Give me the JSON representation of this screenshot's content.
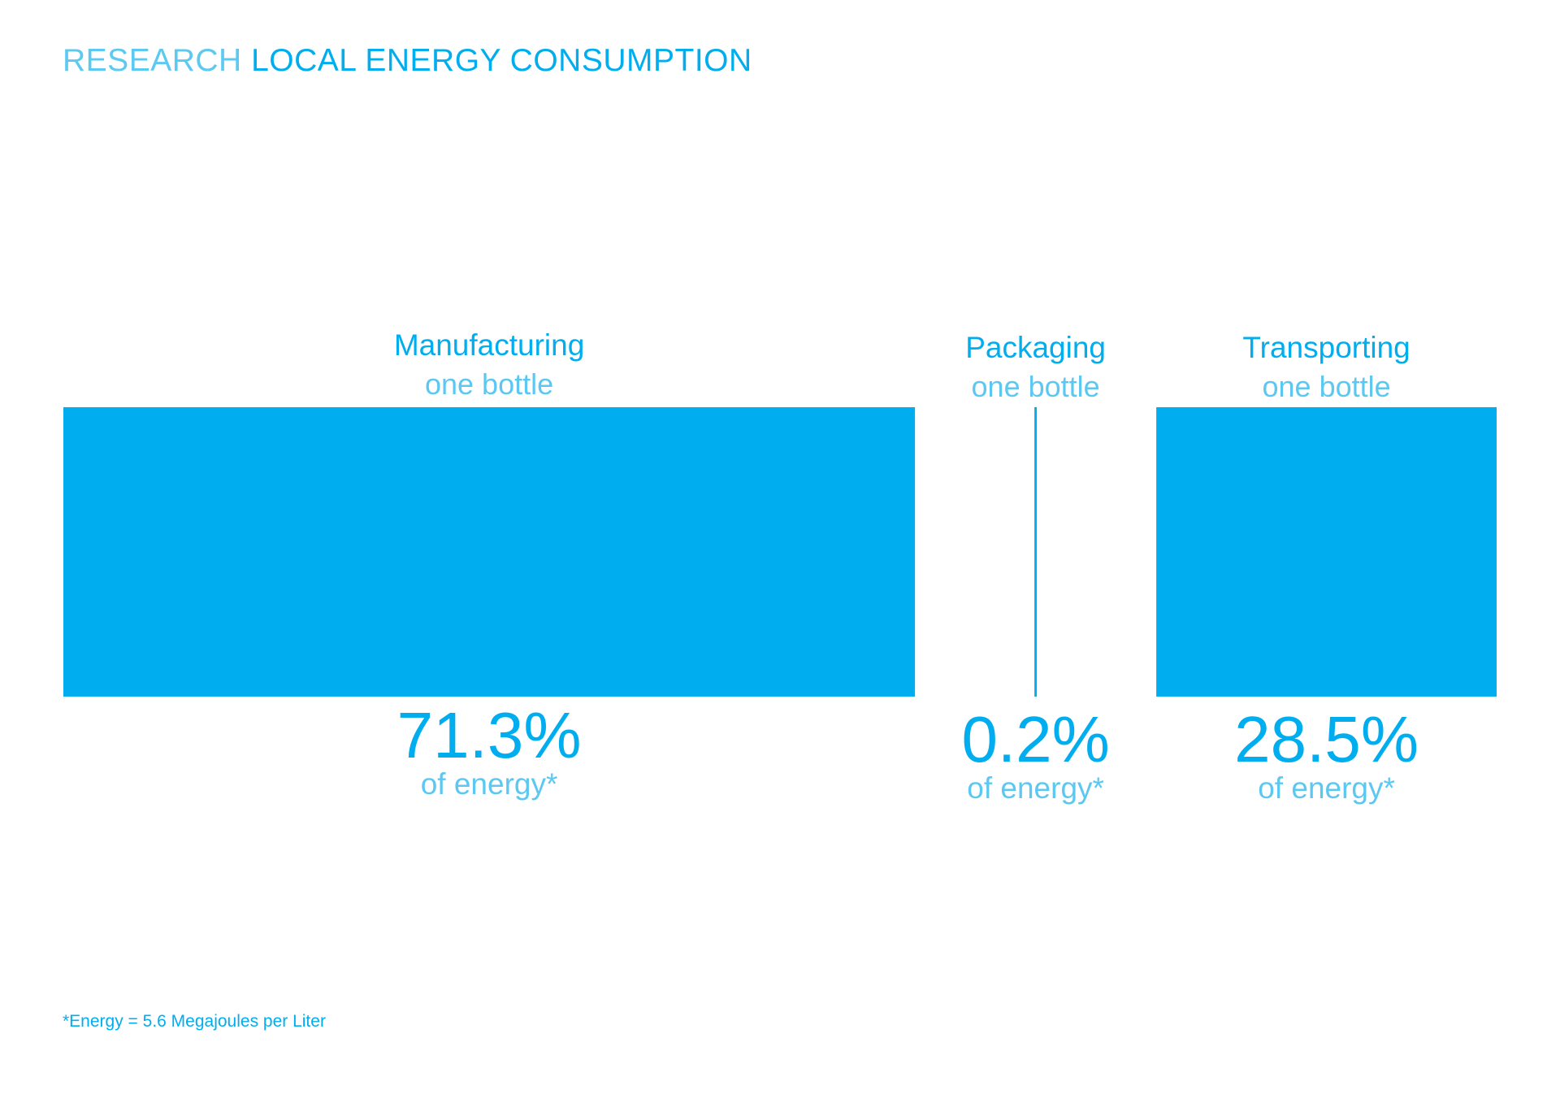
{
  "header": {
    "title_light": "RESEARCH",
    "title_bold": "LOCAL ENERGY CONSUMPTION"
  },
  "colors": {
    "primary": "#00AEEF",
    "light": "#5CC8F2"
  },
  "chart_data": {
    "type": "bar",
    "orientation": "proportional-width",
    "title": "RESEARCH LOCAL ENERGY CONSUMPTION",
    "categories": [
      "Manufacturing",
      "Packaging",
      "Transporting"
    ],
    "subtitles": [
      "one bottle",
      "one bottle",
      "one bottle"
    ],
    "values": [
      71.3,
      0.2,
      28.5
    ],
    "value_labels": [
      "71.3%",
      "0.2%",
      "28.5%"
    ],
    "value_sublabels": [
      "of energy*",
      "of energy*",
      "of energy*"
    ],
    "unit": "%",
    "xlabel": "",
    "ylabel": "",
    "grid": false,
    "legend": "none"
  },
  "footnote": "*Energy = 5.6 Megajoules per Liter"
}
